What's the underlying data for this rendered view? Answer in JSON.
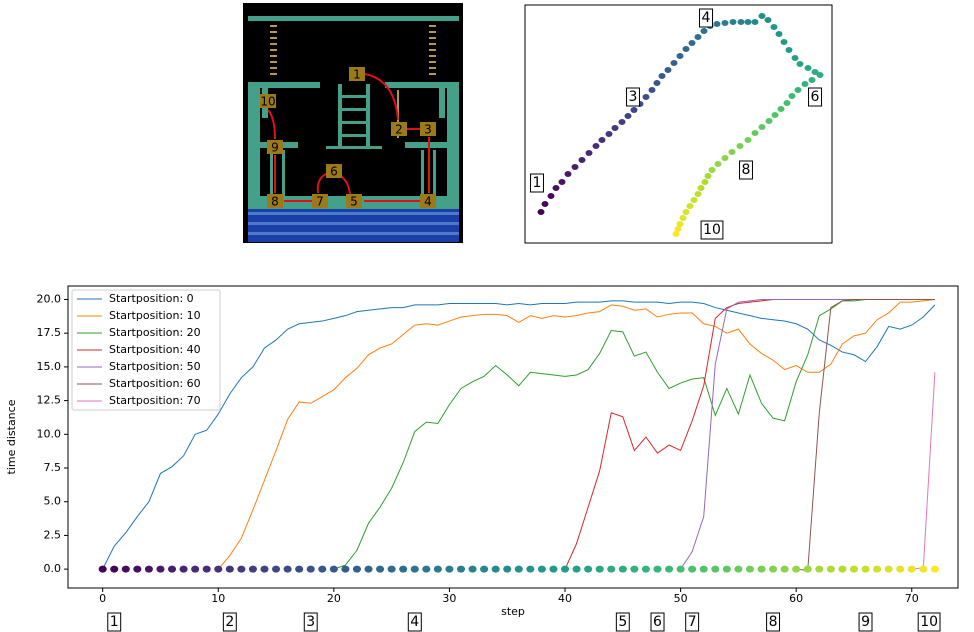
{
  "game": {
    "labels": [
      "1",
      "2",
      "3",
      "4",
      "5",
      "6",
      "7",
      "8",
      "9",
      "10"
    ]
  },
  "chart_data": [
    {
      "type": "scatter",
      "colormap": "viridis",
      "x": [
        541,
        545,
        551,
        556,
        562,
        568,
        575,
        582,
        589,
        596,
        602,
        609,
        615,
        622,
        628,
        634,
        640,
        646,
        652,
        657,
        662,
        668,
        674,
        680,
        686,
        692,
        698,
        704,
        710,
        717,
        725,
        733,
        741,
        748,
        755,
        762,
        768,
        774,
        779,
        784,
        789,
        795,
        800,
        808,
        815,
        820,
        812,
        805,
        798,
        792,
        787,
        781,
        775,
        769,
        762,
        755,
        748,
        740,
        732,
        725,
        718,
        712,
        708,
        705,
        701,
        698,
        694,
        690,
        686,
        683,
        680,
        678,
        676
      ],
      "y": [
        212,
        204,
        196,
        188,
        182,
        174,
        167,
        160,
        153,
        146,
        140,
        134,
        128,
        122,
        116,
        110,
        104,
        97,
        90,
        83,
        76,
        70,
        63,
        56,
        49,
        43,
        37,
        31,
        26,
        24,
        23,
        22,
        22,
        22,
        22,
        16,
        20,
        27,
        34,
        42,
        50,
        58,
        64,
        68,
        72,
        75,
        80,
        84,
        90,
        96,
        103,
        109,
        115,
        121,
        127,
        133,
        140,
        146,
        152,
        158,
        164,
        170,
        176,
        182,
        188,
        194,
        200,
        206,
        212,
        218,
        224,
        229,
        234
      ],
      "xlim": [
        525,
        832
      ],
      "ylim": [
        243,
        5
      ],
      "annotations": [
        {
          "text": "1",
          "x": 537,
          "y": 183
        },
        {
          "text": "3",
          "x": 633,
          "y": 97
        },
        {
          "text": "4",
          "x": 706,
          "y": 18
        },
        {
          "text": "6",
          "x": 815,
          "y": 97
        },
        {
          "text": "8",
          "x": 746,
          "y": 170
        },
        {
          "text": "10",
          "x": 712,
          "y": 230
        }
      ]
    },
    {
      "type": "line",
      "xlabel": "step",
      "ylabel": "time distance",
      "x": [
        0,
        1,
        2,
        3,
        4,
        5,
        6,
        7,
        8,
        9,
        10,
        11,
        12,
        13,
        14,
        15,
        16,
        17,
        18,
        19,
        20,
        21,
        22,
        23,
        24,
        25,
        26,
        27,
        28,
        29,
        30,
        31,
        32,
        33,
        34,
        35,
        36,
        37,
        38,
        39,
        40,
        41,
        42,
        43,
        44,
        45,
        46,
        47,
        48,
        49,
        50,
        51,
        52,
        53,
        54,
        55,
        56,
        57,
        58,
        59,
        60,
        61,
        62,
        63,
        64,
        65,
        66,
        67,
        68,
        69,
        70,
        71,
        72
      ],
      "xlim": [
        -3,
        74
      ],
      "ylim": [
        -1.4,
        21
      ],
      "xticks": [
        0,
        10,
        20,
        30,
        40,
        50,
        60,
        70
      ],
      "yticks": [
        {
          "value": 0,
          "label": "0.0"
        },
        {
          "value": 2.5,
          "label": "2.5"
        },
        {
          "value": 5,
          "label": "5.0"
        },
        {
          "value": 7.5,
          "label": "7.5"
        },
        {
          "value": 10,
          "label": "10.0"
        },
        {
          "value": 12.5,
          "label": "12.5"
        },
        {
          "value": 15,
          "label": "15.0"
        },
        {
          "value": 17.5,
          "label": "17.5"
        },
        {
          "value": 20,
          "label": "20.0"
        }
      ],
      "legend": "upper left",
      "grid": false,
      "series": [
        {
          "name": "Startposition: 0",
          "color": "#1f77b4",
          "values": [
            0,
            1.7,
            2.7,
            3.9,
            5.0,
            7.1,
            7.6,
            8.4,
            10,
            10.3,
            11.5,
            13,
            14.2,
            15,
            16.4,
            17,
            17.8,
            18.2,
            18.3,
            18.4,
            18.6,
            18.8,
            19.1,
            19.2,
            19.3,
            19.4,
            19.4,
            19.6,
            19.6,
            19.6,
            19.7,
            19.7,
            19.7,
            19.7,
            19.7,
            19.6,
            19.7,
            19.6,
            19.7,
            19.7,
            19.7,
            19.8,
            19.8,
            19.8,
            19.9,
            19.9,
            19.8,
            19.8,
            19.8,
            19.7,
            19.8,
            19.8,
            19.7,
            19.4,
            19.2,
            19,
            18.8,
            18.6,
            18.5,
            18.4,
            18.2,
            17.8,
            17,
            16.6,
            16.1,
            15.9,
            15.4,
            16.5,
            18,
            17.8,
            18.1,
            18.7,
            19.6
          ]
        },
        {
          "name": "Startposition: 10",
          "color": "#ff7f0e",
          "values": [
            null,
            null,
            null,
            null,
            null,
            null,
            null,
            null,
            null,
            null,
            0,
            1,
            2.3,
            4.4,
            6.6,
            8.8,
            11.1,
            12.4,
            12.3,
            12.8,
            13.3,
            14.2,
            14.9,
            15.9,
            16.4,
            16.7,
            17.4,
            18.1,
            18.2,
            18.1,
            18.4,
            18.7,
            18.8,
            18.9,
            18.9,
            18.8,
            18.3,
            18.8,
            18.6,
            18.8,
            18.7,
            18.8,
            19.0,
            19.1,
            19.6,
            19.5,
            19.2,
            19.3,
            18.7,
            18.9,
            19.0,
            19.0,
            18.2,
            18.0,
            17.5,
            17.8,
            16.7,
            16.0,
            15.5,
            14.8,
            15.1,
            14.6,
            14.6,
            15.2,
            16.7,
            17.3,
            17.5,
            18.5,
            19.0,
            19.8,
            19.8,
            19.9,
            20
          ]
        },
        {
          "name": "Startposition: 20",
          "color": "#2ca02c",
          "values": [
            null,
            null,
            null,
            null,
            null,
            null,
            null,
            null,
            null,
            null,
            null,
            null,
            null,
            null,
            null,
            null,
            null,
            null,
            null,
            null,
            0,
            0.3,
            1.4,
            3.4,
            4.6,
            6,
            7.9,
            10.2,
            10.9,
            10.8,
            12.2,
            13.4,
            13.9,
            14.3,
            15.1,
            14.4,
            13.6,
            14.6,
            14.5,
            14.4,
            14.3,
            14.4,
            14.8,
            16.0,
            17.7,
            17.6,
            15.8,
            16.1,
            14.6,
            13.4,
            13.8,
            14.1,
            14.2,
            11.4,
            13.4,
            11.5,
            14.4,
            12.3,
            11.2,
            11.0,
            13.9,
            15.9,
            18.8,
            19.3,
            19.9,
            19.9,
            20,
            20,
            20,
            20,
            20,
            20,
            20
          ]
        },
        {
          "name": "Startposition: 40",
          "color": "#d62728",
          "values": [
            null,
            null,
            null,
            null,
            null,
            null,
            null,
            null,
            null,
            null,
            null,
            null,
            null,
            null,
            null,
            null,
            null,
            null,
            null,
            null,
            null,
            null,
            null,
            null,
            null,
            null,
            null,
            null,
            null,
            null,
            null,
            null,
            null,
            null,
            null,
            null,
            null,
            null,
            null,
            null,
            0,
            1.9,
            4.6,
            7.3,
            11.6,
            11.3,
            8.8,
            9.8,
            8.6,
            9.2,
            8.8,
            11,
            13.6,
            18.6,
            19.4,
            19.7,
            19.8,
            19.9,
            20,
            20,
            20,
            20,
            20,
            20,
            20,
            20,
            20,
            20,
            20,
            20,
            20,
            20,
            20
          ]
        },
        {
          "name": "Startposition: 50",
          "color": "#9467bd",
          "values": [
            null,
            null,
            null,
            null,
            null,
            null,
            null,
            null,
            null,
            null,
            null,
            null,
            null,
            null,
            null,
            null,
            null,
            null,
            null,
            null,
            null,
            null,
            null,
            null,
            null,
            null,
            null,
            null,
            null,
            null,
            null,
            null,
            null,
            null,
            null,
            null,
            null,
            null,
            null,
            null,
            null,
            null,
            null,
            null,
            null,
            null,
            null,
            null,
            null,
            null,
            0,
            1.3,
            3.9,
            15.2,
            19.3,
            19.8,
            19.9,
            20,
            20,
            20,
            20,
            20,
            20,
            20,
            20,
            20,
            20,
            20,
            20,
            20,
            20,
            20,
            20
          ]
        },
        {
          "name": "Startposition: 60",
          "color": "#8c564b",
          "values": [
            null,
            null,
            null,
            null,
            null,
            null,
            null,
            null,
            null,
            null,
            null,
            null,
            null,
            null,
            null,
            null,
            null,
            null,
            null,
            null,
            null,
            null,
            null,
            null,
            null,
            null,
            null,
            null,
            null,
            null,
            null,
            null,
            null,
            null,
            null,
            null,
            null,
            null,
            null,
            null,
            null,
            null,
            null,
            null,
            null,
            null,
            null,
            null,
            null,
            null,
            null,
            null,
            null,
            null,
            null,
            null,
            null,
            null,
            null,
            null,
            0,
            -0.1,
            11.6,
            19.4,
            19.9,
            20,
            20,
            20,
            20,
            20,
            20,
            20,
            20
          ]
        },
        {
          "name": "Startposition: 70",
          "color": "#e377c2",
          "values": [
            null,
            null,
            null,
            null,
            null,
            null,
            null,
            null,
            null,
            null,
            null,
            null,
            null,
            null,
            null,
            null,
            null,
            null,
            null,
            null,
            null,
            null,
            null,
            null,
            null,
            null,
            null,
            null,
            null,
            null,
            null,
            null,
            null,
            null,
            null,
            null,
            null,
            null,
            null,
            null,
            null,
            null,
            null,
            null,
            null,
            null,
            null,
            null,
            null,
            null,
            null,
            null,
            null,
            null,
            null,
            null,
            null,
            null,
            null,
            null,
            null,
            null,
            null,
            null,
            null,
            null,
            null,
            null,
            null,
            null,
            0,
            0.1,
            14.6
          ]
        }
      ],
      "markers": {
        "colormap": "viridis",
        "values": [
          0,
          0,
          0,
          0,
          0,
          0,
          0,
          0,
          0,
          0,
          0,
          0,
          0,
          0,
          0,
          0,
          0,
          0,
          0,
          0,
          0,
          0,
          0,
          0,
          0,
          0,
          0,
          0,
          0,
          0,
          0,
          0,
          0,
          0,
          0,
          0,
          0,
          0,
          0,
          0,
          0,
          0,
          0,
          0,
          0,
          0,
          0,
          0,
          0,
          0,
          0,
          0,
          0,
          0,
          0,
          0,
          0,
          0,
          0,
          0,
          0,
          0,
          0,
          0,
          0,
          0,
          0,
          0,
          0,
          0,
          0,
          0,
          0
        ]
      },
      "annotations": [
        {
          "text": "1",
          "x": 1
        },
        {
          "text": "2",
          "x": 11
        },
        {
          "text": "3",
          "x": 18
        },
        {
          "text": "4",
          "x": 27
        },
        {
          "text": "5",
          "x": 45
        },
        {
          "text": "6",
          "x": 48
        },
        {
          "text": "7",
          "x": 51
        },
        {
          "text": "8",
          "x": 58
        },
        {
          "text": "9",
          "x": 66
        },
        {
          "text": "10",
          "x": 71.5
        }
      ]
    }
  ]
}
